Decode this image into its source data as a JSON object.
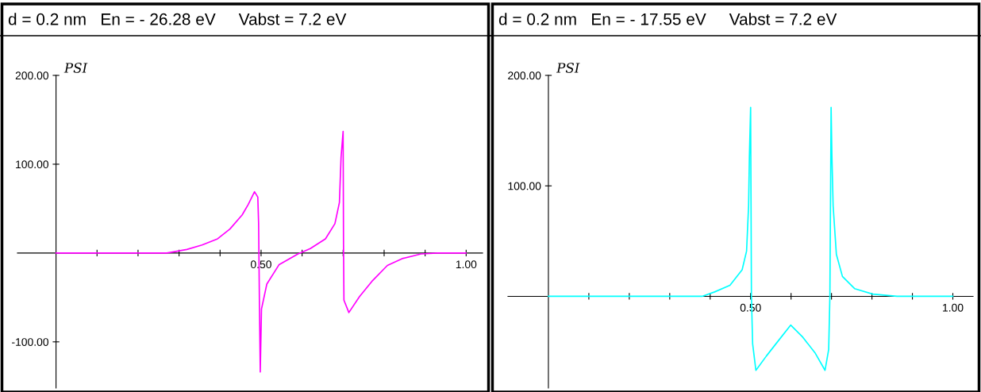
{
  "chart_data": [
    {
      "type": "line",
      "title": "d = 0.2 nm   En = - 26.28 eV     Vabst = 7.2 eV",
      "ylabel": "PSI",
      "xlim": [
        -0.094,
        1.04
      ],
      "ylim": [
        -152,
        200
      ],
      "xticks": [
        {
          "value": 0.1,
          "label": null
        },
        {
          "value": 0.2,
          "label": null
        },
        {
          "value": 0.3,
          "label": null
        },
        {
          "value": 0.4,
          "label": null
        },
        {
          "value": 0.5,
          "label": "0.50"
        },
        {
          "value": 0.6,
          "label": null
        },
        {
          "value": 0.7,
          "label": null
        },
        {
          "value": 0.8,
          "label": null
        },
        {
          "value": 0.9,
          "label": null
        },
        {
          "value": 1.0,
          "label": "1.00"
        }
      ],
      "yticks": [
        {
          "value": -100,
          "label": "-100.00"
        },
        {
          "value": 100,
          "label": "100.00"
        },
        {
          "value": 200,
          "label": "200.00"
        }
      ],
      "series": [
        {
          "color": "#ff00ff",
          "x": [
            0,
            0.27,
            0.319,
            0.356,
            0.394,
            0.424,
            0.454,
            0.469,
            0.484,
            0.492,
            0.494,
            0.496,
            0.498,
            0.501,
            0.514,
            0.544,
            0.59,
            0.62,
            0.657,
            0.68,
            0.691,
            0.695,
            0.7,
            0.701,
            0.702,
            0.714,
            0.74,
            0.77,
            0.808,
            0.846,
            0.89,
            0.93,
            1.0
          ],
          "values": [
            0,
            0,
            4,
            9,
            16,
            27,
            43,
            55,
            69,
            63,
            33,
            -59,
            -134,
            -63,
            -35,
            -13,
            -1,
            5,
            16,
            33,
            57,
            108,
            137,
            9,
            -53,
            -67,
            -49,
            -32,
            -14,
            -6,
            -1,
            0,
            0
          ]
        }
      ]
    },
    {
      "type": "line",
      "title": "d = 0.2 nm   En = - 17.55 eV     Vabst = 7.2 eV",
      "ylabel": "PSI",
      "xlim": [
        -0.1,
        1.05
      ],
      "ylim": [
        -83,
        200
      ],
      "xticks": [
        {
          "value": 0.1,
          "label": null
        },
        {
          "value": 0.2,
          "label": null
        },
        {
          "value": 0.3,
          "label": null
        },
        {
          "value": 0.4,
          "label": null
        },
        {
          "value": 0.5,
          "label": "0.50"
        },
        {
          "value": 0.6,
          "label": null
        },
        {
          "value": 0.7,
          "label": null
        },
        {
          "value": 0.8,
          "label": null
        },
        {
          "value": 0.9,
          "label": null
        },
        {
          "value": 1.0,
          "label": "1.00"
        }
      ],
      "yticks": [
        {
          "value": 100,
          "label": "100.00"
        },
        {
          "value": 200,
          "label": "200.00"
        }
      ],
      "series": [
        {
          "color": "#00ffff",
          "x": [
            0,
            0.38,
            0.411,
            0.449,
            0.479,
            0.49,
            0.495,
            0.497,
            0.5,
            0.502,
            0.505,
            0.513,
            0.539,
            0.569,
            0.599,
            0.629,
            0.659,
            0.684,
            0.693,
            0.696,
            0.699,
            0.701,
            0.704,
            0.712,
            0.727,
            0.757,
            0.802,
            0.862,
            1.0
          ],
          "values": [
            0,
            0,
            4,
            10,
            24,
            41,
            82,
            127,
            171,
            0,
            -43,
            -67,
            -54,
            -40,
            -26,
            -37,
            -51,
            -67,
            -48,
            0,
            171,
            127,
            82,
            38,
            18,
            7,
            2,
            0,
            0
          ]
        }
      ]
    }
  ]
}
